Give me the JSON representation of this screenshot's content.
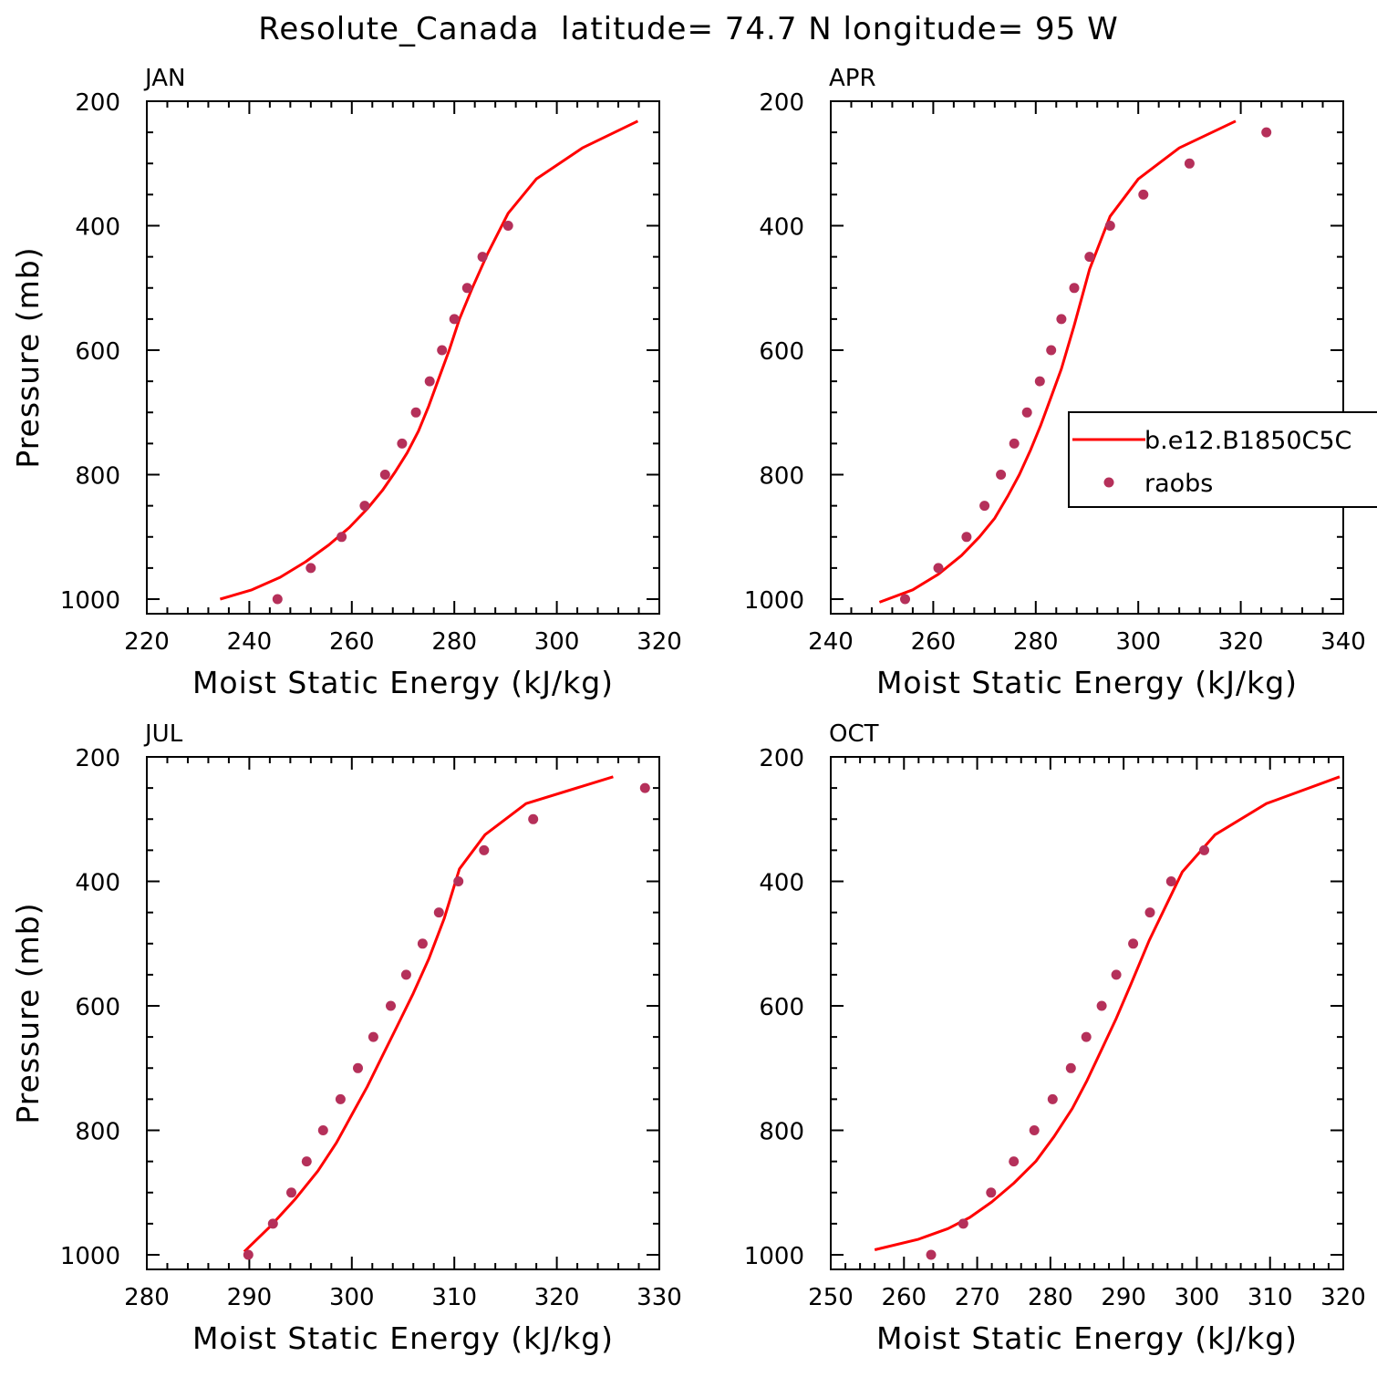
{
  "figure_title": "Resolute_Canada  latitude= 74.7 N longitude= 95 W",
  "colors": {
    "model_line": "#ff0000",
    "observation_marker": "#b5305a",
    "axes": "#000000"
  },
  "legend": {
    "panel": "APR",
    "entries": [
      {
        "label": "b.e12.B1850C5C",
        "style": "line"
      },
      {
        "label": "raobs",
        "style": "marker"
      }
    ]
  },
  "chart_data": [
    {
      "type": "line",
      "title": "JAN",
      "xlabel": "Moist Static Energy (kJ/kg)",
      "ylabel": "Pressure (mb)",
      "xlim": [
        220,
        320
      ],
      "ylim": [
        1000,
        200
      ],
      "x_ticks": [
        "220",
        "240",
        "260",
        "280",
        "300",
        "320"
      ],
      "y_ticks": [
        "200",
        "400",
        "600",
        "800",
        "1000"
      ],
      "series": [
        {
          "style": "line",
          "x": [
            234.3,
            240.5,
            246.0,
            251.0,
            255.5,
            259.5,
            263.0,
            266.0,
            268.5,
            270.8,
            273.0,
            275.0,
            277.0,
            279.0,
            281.0,
            283.5,
            286.5,
            290.5,
            296.0,
            305.0,
            315.8
          ],
          "y": [
            1000,
            985,
            965,
            940,
            913,
            885,
            855,
            825,
            795,
            765,
            730,
            690,
            645,
            600,
            550,
            500,
            445,
            380,
            325,
            275,
            232
          ]
        },
        {
          "style": "marker",
          "x": [
            245.5,
            252.0,
            258.0,
            262.5,
            266.5,
            269.8,
            272.5,
            275.2,
            277.6,
            280.0,
            282.5,
            285.5,
            290.5
          ],
          "y": [
            1000,
            950,
            900,
            850,
            800,
            750,
            700,
            650,
            600,
            550,
            500,
            450,
            400
          ]
        }
      ]
    },
    {
      "type": "line",
      "title": "APR",
      "xlabel": "Moist Static Energy (kJ/kg)",
      "ylabel": "",
      "xlim": [
        240,
        340
      ],
      "ylim": [
        1000,
        200
      ],
      "x_ticks": [
        "240",
        "260",
        "280",
        "300",
        "320",
        "340"
      ],
      "y_ticks": [
        "200",
        "400",
        "600",
        "800",
        "1000"
      ],
      "series": [
        {
          "style": "line",
          "x": [
            249.5,
            256.0,
            261.0,
            265.5,
            269.0,
            272.0,
            274.5,
            276.8,
            279.0,
            281.0,
            283.0,
            285.0,
            287.5,
            290.5,
            294.5,
            300.0,
            308.0,
            319.0
          ],
          "y": [
            1005,
            985,
            960,
            930,
            900,
            870,
            835,
            800,
            760,
            720,
            675,
            630,
            560,
            470,
            385,
            325,
            275,
            232
          ]
        },
        {
          "style": "marker",
          "x": [
            254.5,
            261.0,
            266.5,
            270.0,
            273.2,
            275.8,
            278.3,
            280.8,
            283.0,
            285.0,
            287.5,
            290.5,
            294.5,
            301.0,
            310.0,
            325.0
          ],
          "y": [
            1000,
            950,
            900,
            850,
            800,
            750,
            700,
            650,
            600,
            550,
            500,
            450,
            400,
            350,
            300,
            250
          ]
        }
      ]
    },
    {
      "type": "line",
      "title": "JUL",
      "xlabel": "Moist Static Energy (kJ/kg)",
      "ylabel": "Pressure (mb)",
      "xlim": [
        280,
        330
      ],
      "ylim": [
        1000,
        200
      ],
      "x_ticks": [
        "280",
        "290",
        "300",
        "310",
        "320",
        "330"
      ],
      "y_ticks": [
        "200",
        "400",
        "600",
        "800",
        "1000"
      ],
      "series": [
        {
          "style": "line",
          "x": [
            289.5,
            292.0,
            294.5,
            296.7,
            298.5,
            300.0,
            301.5,
            303.0,
            304.5,
            306.0,
            307.5,
            309.0,
            310.5,
            313.0,
            317.0,
            325.5
          ],
          "y": [
            995,
            955,
            910,
            865,
            820,
            775,
            730,
            680,
            630,
            580,
            525,
            460,
            380,
            325,
            275,
            232
          ]
        },
        {
          "style": "marker",
          "x": [
            289.9,
            292.3,
            294.1,
            295.6,
            297.2,
            298.9,
            300.6,
            302.1,
            303.8,
            305.3,
            306.9,
            308.5,
            310.4,
            312.9,
            317.7,
            328.6
          ],
          "y": [
            1000,
            950,
            900,
            850,
            800,
            750,
            700,
            650,
            600,
            550,
            500,
            450,
            400,
            350,
            300,
            250
          ]
        }
      ]
    },
    {
      "type": "line",
      "title": "OCT",
      "xlabel": "Moist Static Energy (kJ/kg)",
      "ylabel": "",
      "xlim": [
        250,
        320
      ],
      "ylim": [
        1000,
        200
      ],
      "x_ticks": [
        "250",
        "260",
        "270",
        "280",
        "290",
        "300",
        "310",
        "320"
      ],
      "y_ticks": [
        "200",
        "400",
        "600",
        "800",
        "1000"
      ],
      "series": [
        {
          "style": "line",
          "x": [
            256.0,
            262.0,
            266.0,
            269.0,
            272.0,
            275.0,
            278.0,
            280.5,
            283.0,
            285.0,
            287.0,
            289.0,
            291.0,
            293.5,
            298.0,
            302.5,
            309.5,
            319.5
          ],
          "y": [
            992,
            975,
            958,
            940,
            915,
            885,
            850,
            810,
            765,
            720,
            670,
            620,
            565,
            495,
            385,
            325,
            275,
            232
          ]
        },
        {
          "style": "marker",
          "x": [
            263.7,
            268.1,
            271.9,
            275.0,
            277.8,
            280.3,
            282.8,
            284.9,
            287.0,
            289.0,
            291.3,
            293.6,
            296.5,
            301.0
          ],
          "y": [
            1000,
            950,
            900,
            850,
            800,
            750,
            700,
            650,
            600,
            550,
            500,
            450,
            400,
            350
          ]
        }
      ]
    }
  ]
}
